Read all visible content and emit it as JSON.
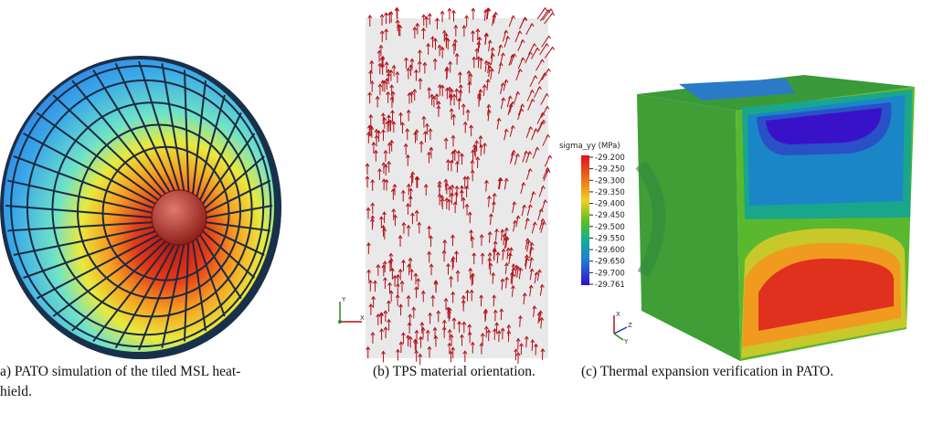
{
  "captions": {
    "a": [
      "a) PATO simulation of the tiled MSL heat-",
      "hield."
    ],
    "b": "(b) TPS material orientation.",
    "c": "(c) Thermal expansion verification in PATO."
  },
  "colorbar": {
    "title": "sigma_yy (MPa)",
    "labels": [
      "-29.200",
      "-29.250",
      "-29.300",
      "-29.350",
      "-29.400",
      "-29.450",
      "-29.500",
      "-29.550",
      "-29.600",
      "-29.650",
      "-29.700",
      "-29.761"
    ]
  },
  "axes_b": {
    "y": "Y",
    "x": "X"
  },
  "axes_c": {
    "x": "X",
    "z": "Z",
    "y": "Y"
  }
}
